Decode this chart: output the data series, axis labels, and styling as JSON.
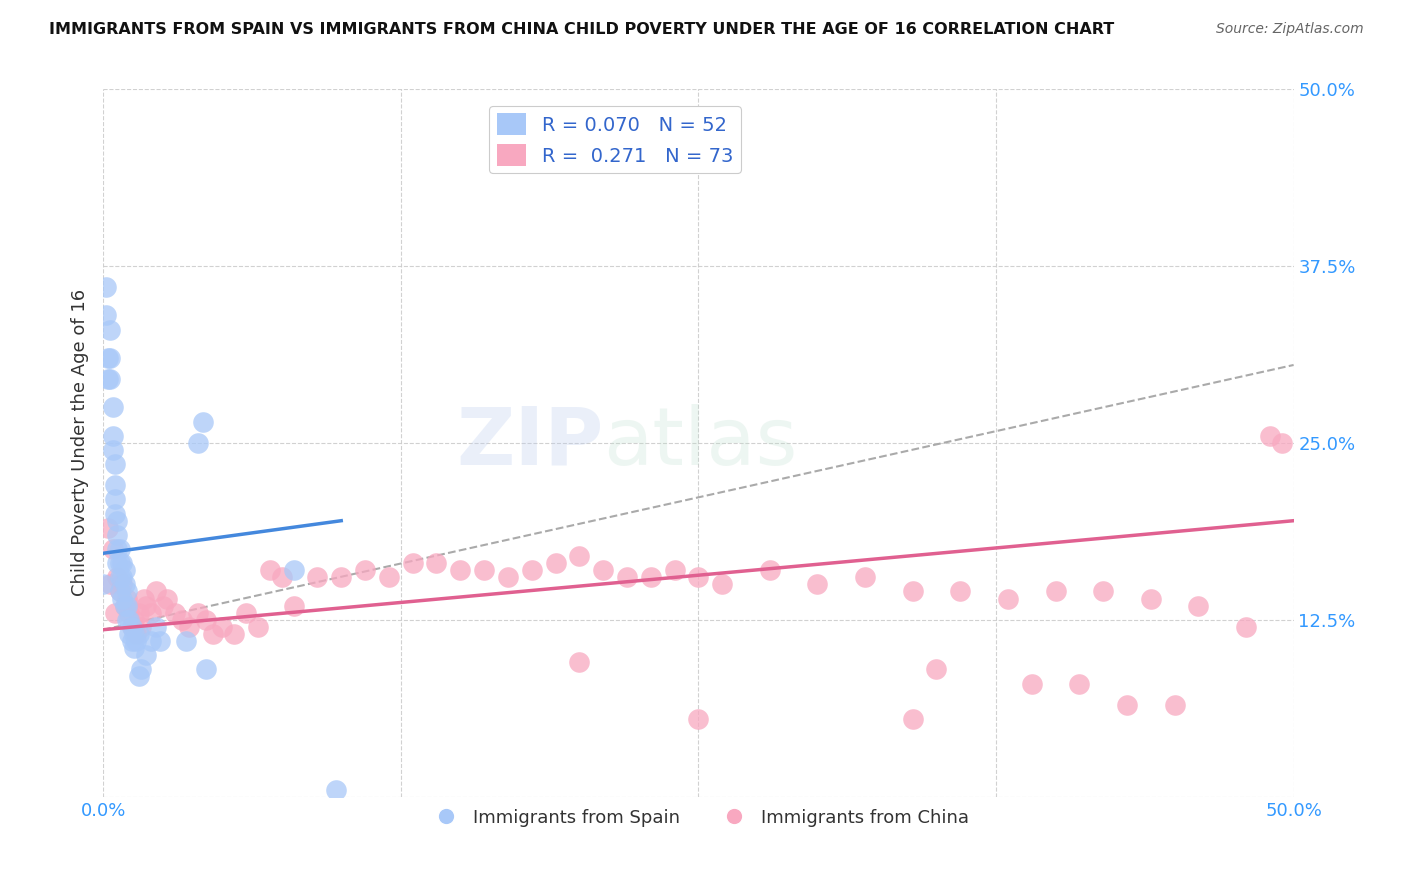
{
  "title": "IMMIGRANTS FROM SPAIN VS IMMIGRANTS FROM CHINA CHILD POVERTY UNDER THE AGE OF 16 CORRELATION CHART",
  "source": "Source: ZipAtlas.com",
  "ylabel": "Child Poverty Under the Age of 16",
  "xlim": [
    0.0,
    0.5
  ],
  "ylim": [
    0.0,
    0.5
  ],
  "spain_color": "#a8c8f8",
  "china_color": "#f8a8c0",
  "spain_R": 0.07,
  "spain_N": 52,
  "china_R": 0.271,
  "china_N": 73,
  "spain_line_color": "#4488dd",
  "china_line_color": "#e06090",
  "trendline_color": "#aaaaaa",
  "background_color": "#ffffff",
  "watermark": "ZIPatlas",
  "spain_line": [
    [
      0.0,
      0.172
    ],
    [
      0.1,
      0.195
    ]
  ],
  "china_line": [
    [
      0.0,
      0.118
    ],
    [
      0.5,
      0.195
    ]
  ],
  "dashed_line": [
    [
      0.0,
      0.118
    ],
    [
      0.5,
      0.305
    ]
  ],
  "spain_x": [
    0.0,
    0.001,
    0.001,
    0.002,
    0.002,
    0.003,
    0.003,
    0.003,
    0.004,
    0.004,
    0.004,
    0.005,
    0.005,
    0.005,
    0.005,
    0.006,
    0.006,
    0.006,
    0.006,
    0.007,
    0.007,
    0.007,
    0.007,
    0.008,
    0.008,
    0.008,
    0.009,
    0.009,
    0.009,
    0.01,
    0.01,
    0.01,
    0.011,
    0.011,
    0.012,
    0.012,
    0.013,
    0.013,
    0.014,
    0.015,
    0.015,
    0.016,
    0.018,
    0.02,
    0.022,
    0.024,
    0.035,
    0.04,
    0.042,
    0.043,
    0.08,
    0.098
  ],
  "spain_y": [
    0.15,
    0.36,
    0.34,
    0.31,
    0.295,
    0.33,
    0.31,
    0.295,
    0.275,
    0.255,
    0.245,
    0.235,
    0.22,
    0.21,
    0.2,
    0.195,
    0.185,
    0.175,
    0.165,
    0.175,
    0.165,
    0.155,
    0.145,
    0.165,
    0.155,
    0.14,
    0.16,
    0.15,
    0.135,
    0.145,
    0.135,
    0.125,
    0.125,
    0.115,
    0.12,
    0.11,
    0.115,
    0.105,
    0.11,
    0.115,
    0.085,
    0.09,
    0.1,
    0.11,
    0.12,
    0.11,
    0.11,
    0.25,
    0.265,
    0.09,
    0.16,
    0.005
  ],
  "china_x": [
    0.002,
    0.003,
    0.004,
    0.005,
    0.006,
    0.007,
    0.008,
    0.009,
    0.01,
    0.011,
    0.012,
    0.013,
    0.014,
    0.015,
    0.016,
    0.017,
    0.018,
    0.02,
    0.022,
    0.025,
    0.027,
    0.03,
    0.033,
    0.036,
    0.04,
    0.043,
    0.046,
    0.05,
    0.055,
    0.06,
    0.065,
    0.07,
    0.075,
    0.08,
    0.09,
    0.1,
    0.11,
    0.12,
    0.13,
    0.14,
    0.15,
    0.16,
    0.17,
    0.18,
    0.19,
    0.2,
    0.21,
    0.22,
    0.23,
    0.24,
    0.25,
    0.26,
    0.28,
    0.3,
    0.32,
    0.34,
    0.36,
    0.38,
    0.4,
    0.42,
    0.44,
    0.46,
    0.48,
    0.49,
    0.495,
    0.35,
    0.39,
    0.41,
    0.43,
    0.34,
    0.45,
    0.2,
    0.25
  ],
  "china_y": [
    0.19,
    0.15,
    0.175,
    0.13,
    0.155,
    0.145,
    0.15,
    0.135,
    0.14,
    0.13,
    0.12,
    0.125,
    0.115,
    0.13,
    0.12,
    0.14,
    0.135,
    0.13,
    0.145,
    0.135,
    0.14,
    0.13,
    0.125,
    0.12,
    0.13,
    0.125,
    0.115,
    0.12,
    0.115,
    0.13,
    0.12,
    0.16,
    0.155,
    0.135,
    0.155,
    0.155,
    0.16,
    0.155,
    0.165,
    0.165,
    0.16,
    0.16,
    0.155,
    0.16,
    0.165,
    0.17,
    0.16,
    0.155,
    0.155,
    0.16,
    0.155,
    0.15,
    0.16,
    0.15,
    0.155,
    0.145,
    0.145,
    0.14,
    0.145,
    0.145,
    0.14,
    0.135,
    0.12,
    0.255,
    0.25,
    0.09,
    0.08,
    0.08,
    0.065,
    0.055,
    0.065,
    0.095,
    0.055
  ]
}
